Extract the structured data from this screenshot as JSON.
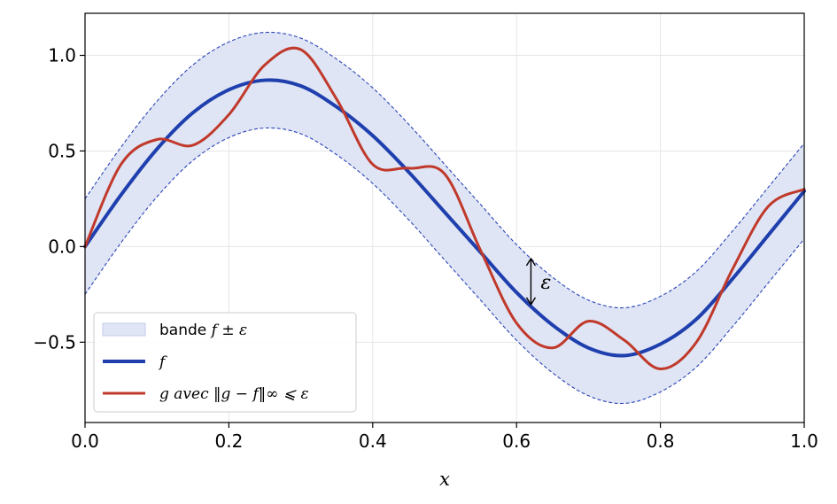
{
  "chart_data": {
    "type": "line",
    "xlabel": "x",
    "ylabel": "",
    "xlim": [
      0.0,
      1.0
    ],
    "ylim": [
      -0.92,
      1.22
    ],
    "grid": true,
    "legend_position": "bottom-left",
    "x_ticks": [
      0.0,
      0.2,
      0.4,
      0.6,
      0.8,
      1.0
    ],
    "x_tick_labels": [
      "0.0",
      "0.2",
      "0.4",
      "0.6",
      "0.8",
      "1.0"
    ],
    "y_ticks": [
      1.0,
      0.5,
      0.0,
      -0.5
    ],
    "y_tick_labels": [
      "1.0",
      "0.5",
      "0.0",
      "−0.5"
    ],
    "epsilon": 0.25,
    "annotation": {
      "text": "ε",
      "x": 0.62
    },
    "x": [
      0.0,
      0.05,
      0.1,
      0.15,
      0.2,
      0.25,
      0.3,
      0.35,
      0.4,
      0.45,
      0.5,
      0.55,
      0.6,
      0.65,
      0.7,
      0.75,
      0.8,
      0.85,
      0.9,
      0.95,
      1.0
    ],
    "series": [
      {
        "key": "band",
        "kind": "band",
        "legend_prefix": "bande ",
        "legend_math": "f ± ε",
        "color": "#dfe5f4",
        "edge_color": "#2b45b8",
        "lower": [
          -0.25,
          0.02,
          0.26,
          0.45,
          0.57,
          0.62,
          0.59,
          0.48,
          0.33,
          0.14,
          -0.07,
          -0.28,
          -0.49,
          -0.66,
          -0.78,
          -0.82,
          -0.76,
          -0.63,
          -0.42,
          -0.19,
          0.04
        ],
        "upper": [
          0.25,
          0.52,
          0.76,
          0.95,
          1.07,
          1.12,
          1.09,
          0.98,
          0.83,
          0.64,
          0.43,
          0.22,
          0.01,
          -0.16,
          -0.28,
          -0.32,
          -0.26,
          -0.13,
          0.08,
          0.31,
          0.54
        ]
      },
      {
        "key": "f",
        "kind": "line",
        "legend_prefix": "",
        "legend_math": "f",
        "color": "#1f3fae",
        "values": [
          0.0,
          0.27,
          0.51,
          0.7,
          0.82,
          0.87,
          0.84,
          0.73,
          0.58,
          0.39,
          0.18,
          -0.03,
          -0.24,
          -0.41,
          -0.53,
          -0.57,
          -0.51,
          -0.38,
          -0.17,
          0.06,
          0.29
        ]
      },
      {
        "key": "g",
        "kind": "line",
        "legend_prefix": "",
        "legend_math": "g avec ‖g − f‖∞ ⩽ ε",
        "color": "#c0392b",
        "values": [
          0.0,
          0.43,
          0.56,
          0.53,
          0.69,
          0.95,
          1.03,
          0.77,
          0.43,
          0.41,
          0.38,
          -0.02,
          -0.4,
          -0.53,
          -0.39,
          -0.49,
          -0.64,
          -0.5,
          -0.12,
          0.21,
          0.3
        ]
      }
    ]
  }
}
